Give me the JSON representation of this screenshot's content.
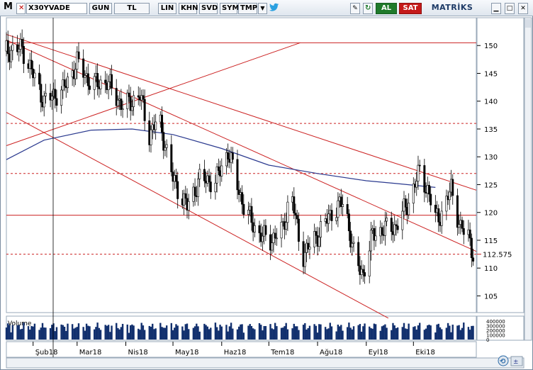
{
  "toolbar": {
    "menu": "M",
    "close": "✕",
    "symbol": "X30YVADE",
    "buttons": [
      "GUN",
      "TL",
      "LIN",
      "KHN",
      "SVD",
      "SYM",
      "TMP"
    ],
    "al": "AL",
    "sat": "SAT",
    "brand": "MATRİKS"
  },
  "colors": {
    "candle": "#000000",
    "trendline": "#cc2222",
    "dashed": "#cc2222",
    "ma": "#2b3a8f",
    "volume": "#12306e",
    "al_button": "#1f7a2b",
    "sat_button": "#c51a1a"
  },
  "chart_data": [
    {
      "type": "candlestick",
      "title": "X30YVADE",
      "x_tick_labels": [
        "Şub18",
        "Mar18",
        "Nis18",
        "May18",
        "Haz18",
        "Tem18",
        "Ağu18",
        "Eyl18",
        "Eki18"
      ],
      "y_ticks": [
        105,
        110,
        115,
        120,
        125,
        130,
        135,
        140,
        145,
        150
      ],
      "ylim": [
        102,
        155
      ],
      "last_price": "112.575",
      "horizontal_lines": [
        {
          "value": 150.5,
          "style": "solid"
        },
        {
          "value": 136,
          "style": "dashed"
        },
        {
          "value": 127,
          "style": "dashed"
        },
        {
          "value": 119.5,
          "style": "solid"
        },
        {
          "value": 112.5,
          "style": "dashed"
        }
      ],
      "moving_average": [
        {
          "x": "2018-01-15",
          "y": 129.5
        },
        {
          "x": "2018-02-08",
          "y": 133
        },
        {
          "x": "2018-03-10",
          "y": 134.8
        },
        {
          "x": "2018-04-05",
          "y": 135
        },
        {
          "x": "2018-05-01",
          "y": 134
        },
        {
          "x": "2018-06-01",
          "y": 131.5
        },
        {
          "x": "2018-07-01",
          "y": 128.5
        },
        {
          "x": "2018-08-01",
          "y": 127
        },
        {
          "x": "2018-09-01",
          "y": 125.7
        },
        {
          "x": "2018-09-20",
          "y": 125.2
        },
        {
          "x": "2018-10-15",
          "y": 124.5
        }
      ],
      "close_series": [
        {
          "x": "2018-01-15",
          "y": 149
        },
        {
          "x": "2018-01-25",
          "y": 149.5
        },
        {
          "x": "2018-02-08",
          "y": 140
        },
        {
          "x": "2018-02-20",
          "y": 142
        },
        {
          "x": "2018-03-01",
          "y": 147
        },
        {
          "x": "2018-03-10",
          "y": 143
        },
        {
          "x": "2018-03-20",
          "y": 143.5
        },
        {
          "x": "2018-03-30",
          "y": 139
        },
        {
          "x": "2018-04-10",
          "y": 141
        },
        {
          "x": "2018-04-16",
          "y": 134
        },
        {
          "x": "2018-04-22",
          "y": 137
        },
        {
          "x": "2018-05-01",
          "y": 126
        },
        {
          "x": "2018-05-10",
          "y": 121
        },
        {
          "x": "2018-05-18",
          "y": 126
        },
        {
          "x": "2018-05-28",
          "y": 125.5
        },
        {
          "x": "2018-06-05",
          "y": 131
        },
        {
          "x": "2018-06-15",
          "y": 121
        },
        {
          "x": "2018-06-25",
          "y": 116
        },
        {
          "x": "2018-07-02",
          "y": 115
        },
        {
          "x": "2018-07-10",
          "y": 117
        },
        {
          "x": "2018-07-15",
          "y": 124
        },
        {
          "x": "2018-07-22",
          "y": 112
        },
        {
          "x": "2018-08-01",
          "y": 116
        },
        {
          "x": "2018-08-10",
          "y": 120
        },
        {
          "x": "2018-08-18",
          "y": 122
        },
        {
          "x": "2018-08-25",
          "y": 111
        },
        {
          "x": "2018-08-30",
          "y": 109
        },
        {
          "x": "2018-09-05",
          "y": 116
        },
        {
          "x": "2018-09-12",
          "y": 117
        },
        {
          "x": "2018-09-20",
          "y": 117.5
        },
        {
          "x": "2018-09-28",
          "y": 122
        },
        {
          "x": "2018-10-05",
          "y": 127.5
        },
        {
          "x": "2018-10-10",
          "y": 124
        },
        {
          "x": "2018-10-15",
          "y": 119
        },
        {
          "x": "2018-10-20",
          "y": 120
        },
        {
          "x": "2018-10-25",
          "y": 124.5
        },
        {
          "x": "2018-10-31",
          "y": 117
        },
        {
          "x": "2018-11-05",
          "y": 116
        },
        {
          "x": "2018-11-08",
          "y": 112.5
        }
      ],
      "trendlines": [
        {
          "name": "upper-channel",
          "from": {
            "x": "2018-01-15",
            "y": 152
          },
          "to": {
            "x": "2018-11-10",
            "y": 124
          }
        },
        {
          "name": "middle-channel",
          "from": {
            "x": "2018-01-15",
            "y": 151
          },
          "to": {
            "x": "2018-11-10",
            "y": 113
          }
        },
        {
          "name": "lower-channel",
          "from": {
            "x": "2018-01-15",
            "y": 138
          },
          "to": {
            "x": "2018-09-15",
            "y": 101
          }
        },
        {
          "name": "rising-line",
          "from": {
            "x": "2018-01-15",
            "y": 132
          },
          "to": {
            "x": "2018-07-21",
            "y": 150.5
          }
        }
      ]
    },
    {
      "type": "bar",
      "title": "Volume",
      "y_tick_labels": [
        "400000",
        "300000",
        "200000",
        "100000",
        "0"
      ]
    }
  ]
}
